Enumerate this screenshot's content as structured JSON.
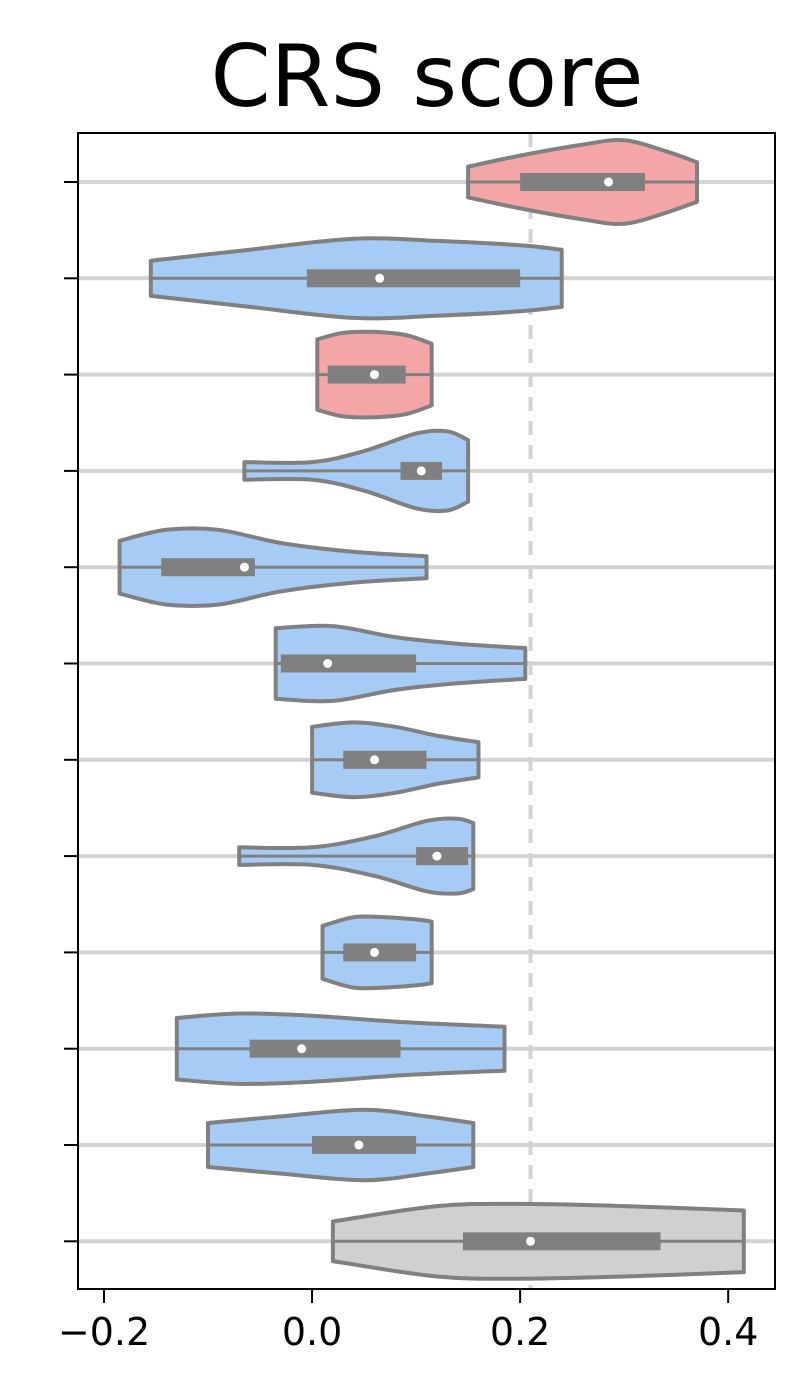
{
  "chart_data": {
    "type": "violin",
    "title": "CRS score",
    "xlabel": "",
    "ylabel": "",
    "xlim": [
      -0.225,
      0.445
    ],
    "x_ticks": [
      -0.2,
      0.0,
      0.2,
      0.4
    ],
    "x_tick_labels": [
      "−0.2",
      "0.0",
      "0.2",
      "0.4"
    ],
    "reference_line": {
      "x": 0.21,
      "style": "dashed",
      "color": "#d3d3d3"
    },
    "grid": "horizontal",
    "colors": {
      "red": "#f4a6a6",
      "blue": "#a6cbf4",
      "gray": "#d0d0d0",
      "edge": "#808080",
      "grid": "#d3d3d3"
    },
    "violins": [
      {
        "min": 0.15,
        "q1": 0.2,
        "median": 0.285,
        "q3": 0.32,
        "max": 0.37,
        "color": "red",
        "profile": [
          [
            0.15,
            0.35
          ],
          [
            0.2,
            0.6
          ],
          [
            0.26,
            0.85
          ],
          [
            0.3,
            0.95
          ],
          [
            0.34,
            0.7
          ],
          [
            0.37,
            0.45
          ]
        ]
      },
      {
        "min": -0.155,
        "q1": -0.005,
        "median": 0.065,
        "q3": 0.2,
        "max": 0.24,
        "color": "blue",
        "profile": [
          [
            -0.155,
            0.4
          ],
          [
            -0.06,
            0.65
          ],
          [
            0.04,
            0.9
          ],
          [
            0.12,
            0.85
          ],
          [
            0.2,
            0.75
          ],
          [
            0.24,
            0.65
          ]
        ]
      },
      {
        "min": 0.005,
        "q1": 0.015,
        "median": 0.06,
        "q3": 0.09,
        "max": 0.115,
        "color": "red",
        "profile": [
          [
            0.005,
            0.8
          ],
          [
            0.03,
            0.95
          ],
          [
            0.06,
            0.97
          ],
          [
            0.09,
            0.9
          ],
          [
            0.115,
            0.7
          ]
        ]
      },
      {
        "min": -0.065,
        "q1": 0.085,
        "median": 0.105,
        "q3": 0.125,
        "max": 0.15,
        "color": "blue",
        "profile": [
          [
            -0.065,
            0.2
          ],
          [
            0.0,
            0.2
          ],
          [
            0.05,
            0.45
          ],
          [
            0.1,
            0.85
          ],
          [
            0.13,
            0.9
          ],
          [
            0.15,
            0.7
          ]
        ]
      },
      {
        "min": -0.185,
        "q1": -0.145,
        "median": -0.065,
        "q3": -0.055,
        "max": 0.11,
        "color": "blue",
        "profile": [
          [
            -0.185,
            0.6
          ],
          [
            -0.14,
            0.85
          ],
          [
            -0.09,
            0.85
          ],
          [
            -0.03,
            0.55
          ],
          [
            0.04,
            0.35
          ],
          [
            0.11,
            0.25
          ]
        ]
      },
      {
        "min": -0.035,
        "q1": -0.03,
        "median": 0.015,
        "q3": 0.1,
        "max": 0.205,
        "color": "blue",
        "profile": [
          [
            -0.035,
            0.8
          ],
          [
            0.02,
            0.85
          ],
          [
            0.08,
            0.6
          ],
          [
            0.14,
            0.45
          ],
          [
            0.205,
            0.35
          ]
        ]
      },
      {
        "min": 0.0,
        "q1": 0.03,
        "median": 0.06,
        "q3": 0.11,
        "max": 0.16,
        "color": "blue",
        "profile": [
          [
            0.0,
            0.75
          ],
          [
            0.04,
            0.85
          ],
          [
            0.08,
            0.75
          ],
          [
            0.12,
            0.55
          ],
          [
            0.16,
            0.4
          ]
        ]
      },
      {
        "min": -0.07,
        "q1": 0.1,
        "median": 0.12,
        "q3": 0.15,
        "max": 0.155,
        "color": "blue",
        "profile": [
          [
            -0.07,
            0.2
          ],
          [
            0.0,
            0.2
          ],
          [
            0.06,
            0.45
          ],
          [
            0.11,
            0.8
          ],
          [
            0.14,
            0.85
          ],
          [
            0.155,
            0.75
          ]
        ]
      },
      {
        "min": 0.01,
        "q1": 0.03,
        "median": 0.06,
        "q3": 0.1,
        "max": 0.115,
        "color": "blue",
        "profile": [
          [
            0.01,
            0.6
          ],
          [
            0.04,
            0.8
          ],
          [
            0.07,
            0.8
          ],
          [
            0.1,
            0.75
          ],
          [
            0.115,
            0.7
          ]
        ]
      },
      {
        "min": -0.13,
        "q1": -0.06,
        "median": -0.01,
        "q3": 0.085,
        "max": 0.185,
        "color": "blue",
        "profile": [
          [
            -0.13,
            0.7
          ],
          [
            -0.07,
            0.8
          ],
          [
            0.0,
            0.75
          ],
          [
            0.09,
            0.6
          ],
          [
            0.185,
            0.5
          ]
        ]
      },
      {
        "min": -0.1,
        "q1": 0.0,
        "median": 0.045,
        "q3": 0.1,
        "max": 0.155,
        "color": "blue",
        "profile": [
          [
            -0.1,
            0.5
          ],
          [
            -0.03,
            0.65
          ],
          [
            0.05,
            0.8
          ],
          [
            0.11,
            0.65
          ],
          [
            0.155,
            0.5
          ]
        ]
      },
      {
        "min": 0.02,
        "q1": 0.145,
        "median": 0.21,
        "q3": 0.335,
        "max": 0.415,
        "color": "gray",
        "profile": [
          [
            0.02,
            0.45
          ],
          [
            0.12,
            0.8
          ],
          [
            0.2,
            0.85
          ],
          [
            0.3,
            0.8
          ],
          [
            0.415,
            0.7
          ]
        ]
      }
    ]
  }
}
